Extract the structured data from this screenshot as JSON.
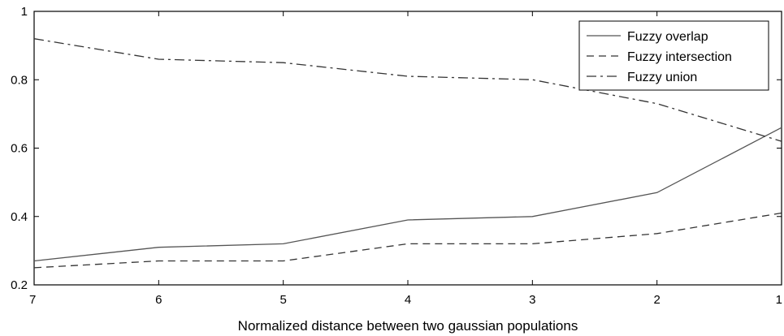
{
  "chart_data": {
    "type": "line",
    "title": "",
    "xlabel": "Normalized distance between two gaussian populations",
    "ylabel": "",
    "x": [
      7,
      6,
      5,
      4,
      3,
      2,
      1
    ],
    "x_reversed": true,
    "xlim": [
      7,
      1
    ],
    "ylim": [
      0.2,
      1
    ],
    "xticks": [
      "7",
      "6",
      "5",
      "4",
      "3",
      "2",
      "1"
    ],
    "yticks": [
      "0.2",
      "0.4",
      "0.6",
      "0.8",
      "1"
    ],
    "grid": false,
    "legend_position": "top-right",
    "series": [
      {
        "name": "Fuzzy overlap",
        "style": "solid",
        "color": "#555555",
        "values": [
          0.27,
          0.31,
          0.32,
          0.39,
          0.4,
          0.47,
          0.66
        ]
      },
      {
        "name": "Fuzzy intersection",
        "style": "dashed",
        "color": "#333333",
        "values": [
          0.25,
          0.27,
          0.27,
          0.32,
          0.32,
          0.35,
          0.41
        ]
      },
      {
        "name": "Fuzzy union",
        "style": "dashdot",
        "color": "#333333",
        "values": [
          0.92,
          0.86,
          0.85,
          0.81,
          0.8,
          0.73,
          0.62
        ]
      }
    ]
  }
}
